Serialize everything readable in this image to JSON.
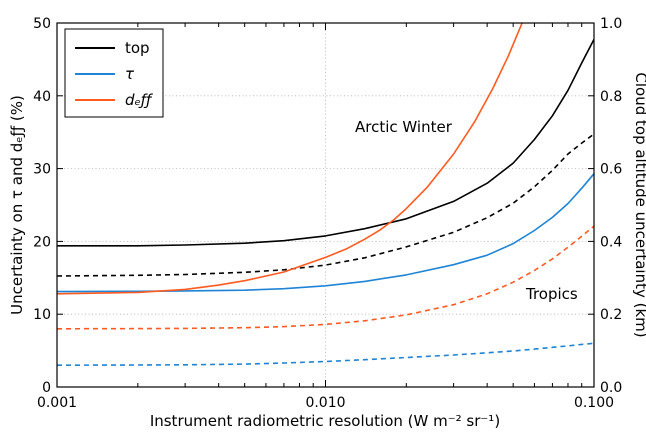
{
  "chart_data": {
    "type": "line",
    "xlabel": "Instrument radiometric resolution (W m⁻² sr⁻¹)",
    "ylabel_left": "Uncertainty on τ and dₑƒƒ (%)",
    "ylabel_right": "Cloud top altitude uncertainty (km)",
    "x_scale": "log",
    "xlim": [
      0.001,
      0.1
    ],
    "ylim_left": [
      0,
      50
    ],
    "ylim_right": [
      0,
      1.0
    ],
    "x_ticks": [
      0.001,
      0.01,
      0.1
    ],
    "x_tick_labels": [
      "0.001",
      "0.010",
      "0.100"
    ],
    "y_left_ticks": [
      0,
      10,
      20,
      30,
      40,
      50
    ],
    "y_left_tick_labels": [
      "0",
      "10",
      "20",
      "30",
      "40",
      "50"
    ],
    "y_right_ticks": [
      0,
      0.2,
      0.4,
      0.6,
      0.8,
      1.0
    ],
    "y_right_tick_labels": [
      "0.0",
      "0.2",
      "0.4",
      "0.6",
      "0.8",
      "1.0"
    ],
    "grid": true,
    "legend": {
      "placement": "top-left",
      "entries": [
        {
          "label": "top",
          "color": "#000000"
        },
        {
          "label": "τ",
          "color": "#1f84d6"
        },
        {
          "label": "dₑƒƒ",
          "color": "#ff5a1f"
        }
      ]
    },
    "annotations": [
      "Arctic Winter",
      "Tropics"
    ],
    "series": [
      {
        "color": "#000000",
        "dash": "solid",
        "axis": "right",
        "x": [
          0.001,
          0.002,
          0.003,
          0.005,
          0.007,
          0.01,
          0.014,
          0.02,
          0.03,
          0.04,
          0.05,
          0.06,
          0.07,
          0.08,
          0.09,
          0.1
        ],
        "y": [
          0.388,
          0.388,
          0.39,
          0.395,
          0.402,
          0.415,
          0.435,
          0.462,
          0.51,
          0.56,
          0.615,
          0.68,
          0.745,
          0.815,
          0.89,
          0.955
        ]
      },
      {
        "color": "#000000",
        "dash": "dashed",
        "axis": "right",
        "x": [
          0.001,
          0.002,
          0.003,
          0.005,
          0.007,
          0.01,
          0.014,
          0.02,
          0.03,
          0.04,
          0.05,
          0.06,
          0.07,
          0.08,
          0.09,
          0.1
        ],
        "y": [
          0.305,
          0.307,
          0.309,
          0.315,
          0.322,
          0.335,
          0.355,
          0.385,
          0.425,
          0.465,
          0.505,
          0.55,
          0.595,
          0.64,
          0.67,
          0.695
        ]
      },
      {
        "color": "#1f84d6",
        "dash": "solid",
        "axis": "left",
        "x": [
          0.001,
          0.002,
          0.003,
          0.005,
          0.007,
          0.01,
          0.014,
          0.02,
          0.03,
          0.04,
          0.05,
          0.06,
          0.07,
          0.08,
          0.09,
          0.1
        ],
        "y": [
          13.1,
          13.15,
          13.2,
          13.3,
          13.5,
          13.9,
          14.5,
          15.4,
          16.8,
          18.1,
          19.7,
          21.5,
          23.3,
          25.2,
          27.3,
          29.3
        ]
      },
      {
        "color": "#1f84d6",
        "dash": "dashed",
        "axis": "left",
        "x": [
          0.001,
          0.002,
          0.003,
          0.005,
          0.007,
          0.01,
          0.014,
          0.02,
          0.03,
          0.04,
          0.05,
          0.06,
          0.07,
          0.08,
          0.09,
          0.1
        ],
        "y": [
          3.0,
          3.02,
          3.05,
          3.15,
          3.3,
          3.5,
          3.75,
          4.05,
          4.4,
          4.7,
          4.95,
          5.2,
          5.45,
          5.65,
          5.85,
          6.0
        ]
      },
      {
        "color": "#ff5a1f",
        "dash": "solid",
        "axis": "left",
        "x": [
          0.001,
          0.002,
          0.003,
          0.004,
          0.005,
          0.007,
          0.01,
          0.012,
          0.014,
          0.016,
          0.018,
          0.02,
          0.024,
          0.03,
          0.036,
          0.042,
          0.048,
          0.054
        ],
        "y": [
          12.8,
          13.0,
          13.4,
          14.0,
          14.6,
          15.8,
          17.8,
          19.0,
          20.3,
          21.6,
          23.0,
          24.5,
          27.5,
          32.0,
          36.5,
          41.0,
          45.5,
          50.0
        ]
      },
      {
        "color": "#ff5a1f",
        "dash": "dashed",
        "axis": "left",
        "x": [
          0.001,
          0.002,
          0.003,
          0.005,
          0.007,
          0.01,
          0.014,
          0.02,
          0.03,
          0.04,
          0.05,
          0.06,
          0.07,
          0.08,
          0.09,
          0.1
        ],
        "y": [
          8.0,
          8.02,
          8.05,
          8.15,
          8.3,
          8.6,
          9.1,
          9.9,
          11.3,
          12.8,
          14.4,
          16.0,
          17.6,
          19.2,
          20.7,
          22.1
        ]
      }
    ]
  }
}
